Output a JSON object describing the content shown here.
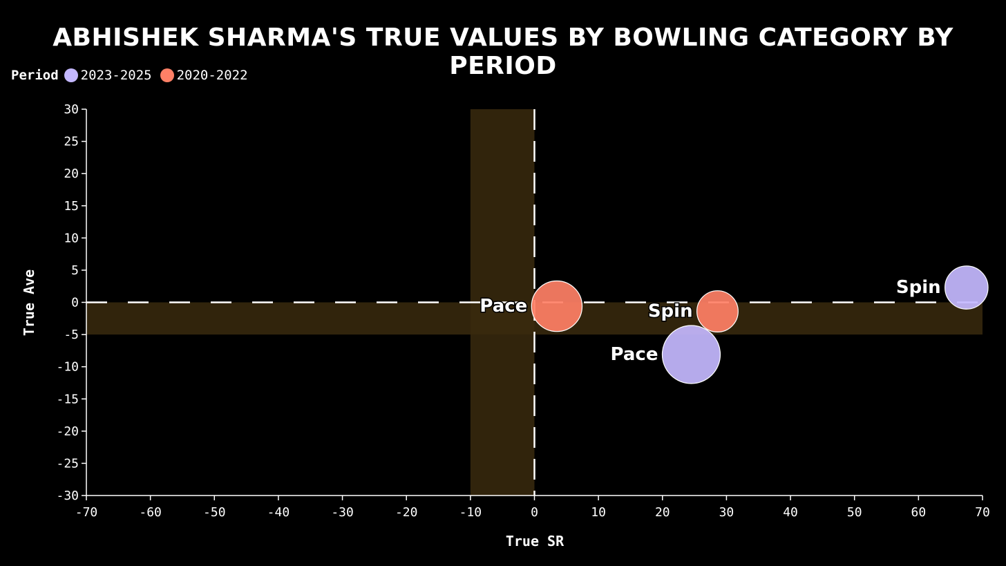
{
  "chart_data": {
    "type": "scatter",
    "title": "ABHISHEK SHARMA'S TRUE VALUES BY BOWLING CATEGORY BY PERIOD",
    "xlabel": "True SR",
    "ylabel": "True Ave",
    "xlim": [
      -70,
      70
    ],
    "ylim": [
      -30,
      30
    ],
    "x_ticks": [
      -70,
      -60,
      -50,
      -40,
      -30,
      -20,
      -10,
      0,
      10,
      20,
      30,
      40,
      50,
      60,
      70
    ],
    "y_ticks": [
      30,
      25,
      20,
      15,
      10,
      5,
      0,
      -5,
      -10,
      -15,
      -20,
      -25,
      -30
    ],
    "legend": {
      "title": "Period",
      "placement": "top-left",
      "entries": [
        {
          "label": "2023-2025",
          "color": "#c4b8ff"
        },
        {
          "label": "2020-2022",
          "color": "#ff8066"
        }
      ]
    },
    "reference_lines": {
      "x": 0,
      "y": 0,
      "style": "dashed"
    },
    "shaded_bands": [
      {
        "axis": "x",
        "from": -10,
        "to": 0,
        "color": "#3a2a0e"
      },
      {
        "axis": "y",
        "from": -5,
        "to": 0,
        "color": "#3a2a0e"
      }
    ],
    "series": [
      {
        "name": "2023-2025",
        "color": "#c4b8ff",
        "points": [
          {
            "label": "Spin",
            "x": 67.5,
            "y": 2.3,
            "size": 0.6
          },
          {
            "label": "Pace",
            "x": 24.5,
            "y": -8.1,
            "size": 1.0
          }
        ]
      },
      {
        "name": "2020-2022",
        "color": "#ff8066",
        "points": [
          {
            "label": "Pace",
            "x": 3.5,
            "y": -0.6,
            "size": 0.8
          },
          {
            "label": "Spin",
            "x": 28.6,
            "y": -1.4,
            "size": 0.55
          }
        ]
      }
    ]
  }
}
